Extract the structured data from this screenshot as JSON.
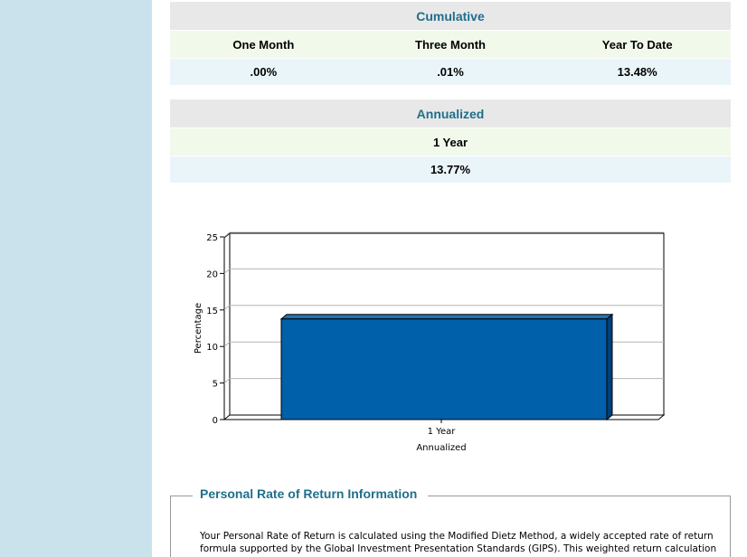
{
  "cumulative": {
    "title": "Cumulative",
    "labels": [
      "One Month",
      "Three Month",
      "Year To Date"
    ],
    "values": [
      ".00%",
      ".01%",
      "13.48%"
    ]
  },
  "annualized": {
    "title": "Annualized",
    "labels": [
      "1 Year"
    ],
    "values": [
      "13.77%"
    ]
  },
  "chart_data": {
    "type": "bar",
    "categories": [
      "1 Year"
    ],
    "values": [
      13.77
    ],
    "title": "",
    "xlabel": "Annualized",
    "ylabel": "Percentage",
    "ylim": [
      0,
      25
    ],
    "yticks": [
      0,
      5,
      10,
      15,
      20,
      25
    ],
    "grid": true,
    "bar_color": "#0060aa",
    "style": "3d"
  },
  "info": {
    "title": "Personal Rate of Return Information",
    "lines": [
      "Your Personal Rate of Return is calculated using the Modified Dietz Method, a widely accepted rate of return",
      "formula supported by the Global Investment Presentation Standards (GIPS). This weighted return calculation"
    ]
  }
}
